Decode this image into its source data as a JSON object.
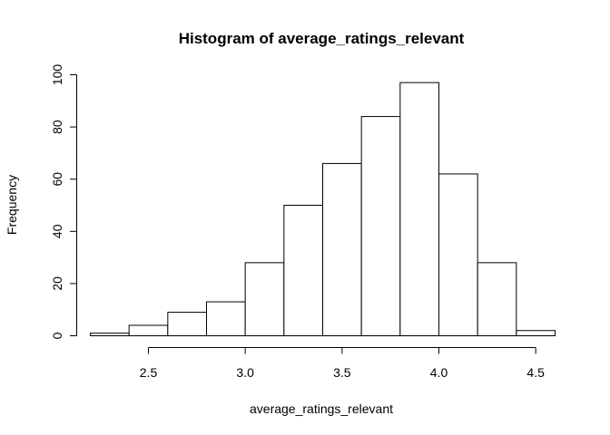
{
  "chart_data": {
    "type": "bar",
    "title": "Histogram of average_ratings_relevant",
    "xlabel": "average_ratings_relevant",
    "ylabel": "Frequency",
    "bins": [
      {
        "start": 2.2,
        "end": 2.4,
        "value": 1
      },
      {
        "start": 2.4,
        "end": 2.6,
        "value": 4
      },
      {
        "start": 2.6,
        "end": 2.8,
        "value": 9
      },
      {
        "start": 2.8,
        "end": 3.0,
        "value": 13
      },
      {
        "start": 3.0,
        "end": 3.2,
        "value": 28
      },
      {
        "start": 3.2,
        "end": 3.4,
        "value": 50
      },
      {
        "start": 3.4,
        "end": 3.6,
        "value": 66
      },
      {
        "start": 3.6,
        "end": 3.8,
        "value": 84
      },
      {
        "start": 3.8,
        "end": 4.0,
        "value": 97
      },
      {
        "start": 4.0,
        "end": 4.2,
        "value": 62
      },
      {
        "start": 4.2,
        "end": 4.4,
        "value": 28
      },
      {
        "start": 4.4,
        "end": 4.6,
        "value": 2
      }
    ],
    "xticks": [
      2.5,
      3.0,
      3.5,
      4.0,
      4.5
    ],
    "xtick_labels": [
      "2.5",
      "3.0",
      "3.5",
      "4.0",
      "4.5"
    ],
    "yticks": [
      0,
      20,
      40,
      60,
      80,
      100
    ],
    "ytick_labels": [
      "0",
      "20",
      "40",
      "60",
      "80",
      "100"
    ],
    "xlim": [
      2.2,
      4.6
    ],
    "ylim": [
      0,
      100
    ],
    "grid": false,
    "bar_fill": "#ffffff",
    "bar_stroke": "#000000"
  }
}
